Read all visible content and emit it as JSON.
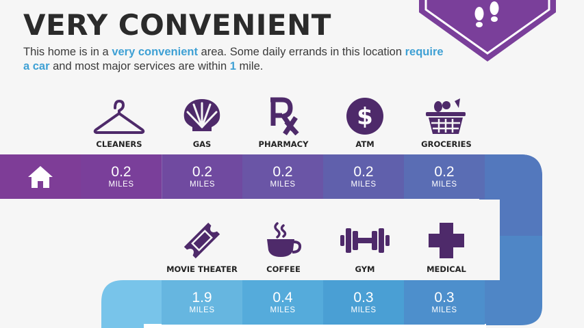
{
  "title": "VERY CONVENIENT",
  "description": {
    "p1": "This home is in a ",
    "h1": "very convenient",
    "p2": " area. Some daily errands in this location ",
    "h2": "require a car",
    "p3": " and most major services are within ",
    "h3": "1",
    "p4": " mile."
  },
  "row1": [
    {
      "label": "CLEANERS",
      "distance": "0.2",
      "unit": "MILES",
      "icon": "hanger-icon",
      "color": "#7a3f9a"
    },
    {
      "label": "GAS",
      "distance": "0.2",
      "unit": "MILES",
      "icon": "shell-icon",
      "color": "#704aa0"
    },
    {
      "label": "PHARMACY",
      "distance": "0.2",
      "unit": "MILES",
      "icon": "rx-icon",
      "color": "#6a55a6"
    },
    {
      "label": "ATM",
      "distance": "0.2",
      "unit": "MILES",
      "icon": "dollar-icon",
      "color": "#6060ac"
    },
    {
      "label": "GROCERIES",
      "distance": "0.2",
      "unit": "MILES",
      "icon": "basket-icon",
      "color": "#5a6db4"
    }
  ],
  "row2": [
    {
      "label": "MOVIE THEATER",
      "distance": "1.9",
      "unit": "MILES",
      "icon": "ticket-icon",
      "color": "#66b6e0"
    },
    {
      "label": "COFFEE",
      "distance": "0.4",
      "unit": "MILES",
      "icon": "coffee-cup-icon",
      "color": "#55abdb"
    },
    {
      "label": "GYM",
      "distance": "0.3",
      "unit": "MILES",
      "icon": "dumbbell-icon",
      "color": "#4a9fd4"
    },
    {
      "label": "MEDICAL",
      "distance": "0.3",
      "unit": "MILES",
      "icon": "medical-cross-icon",
      "color": "#4d8fcc"
    }
  ],
  "colors": {
    "purple": "#7a3f9a",
    "icon": "#4e2a6a",
    "highlight": "#3ea0d4",
    "home": "#7e3d97",
    "track": "#4f86c6"
  }
}
